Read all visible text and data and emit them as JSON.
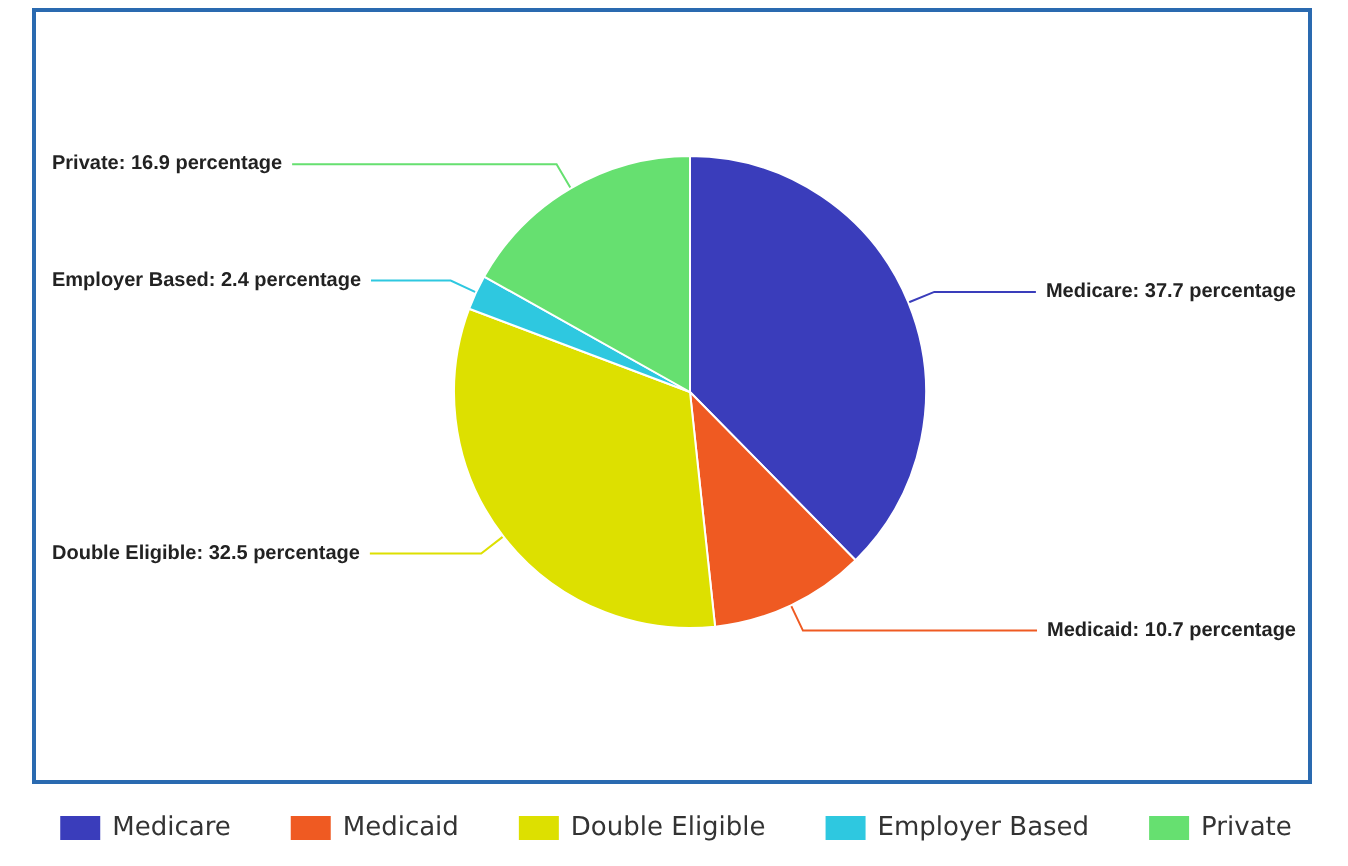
{
  "chart_data": {
    "type": "pie",
    "categories": [
      "Medicare",
      "Medicaid",
      "Double Eligible",
      "Employer Based",
      "Private"
    ],
    "values": [
      37.7,
      10.7,
      32.5,
      2.4,
      16.9
    ],
    "colors": [
      "#3a3dbb",
      "#ef5a22",
      "#dde000",
      "#2ec8e0",
      "#66e070"
    ],
    "value_labels": [
      "Medicare: 37.7 percentage",
      "Medicaid: 10.7 percentage",
      "Double Eligible: 32.5 percentage",
      "Employer Based: 2.4 percentage",
      "Private: 16.9 percentage"
    ],
    "legend": "bottom"
  }
}
